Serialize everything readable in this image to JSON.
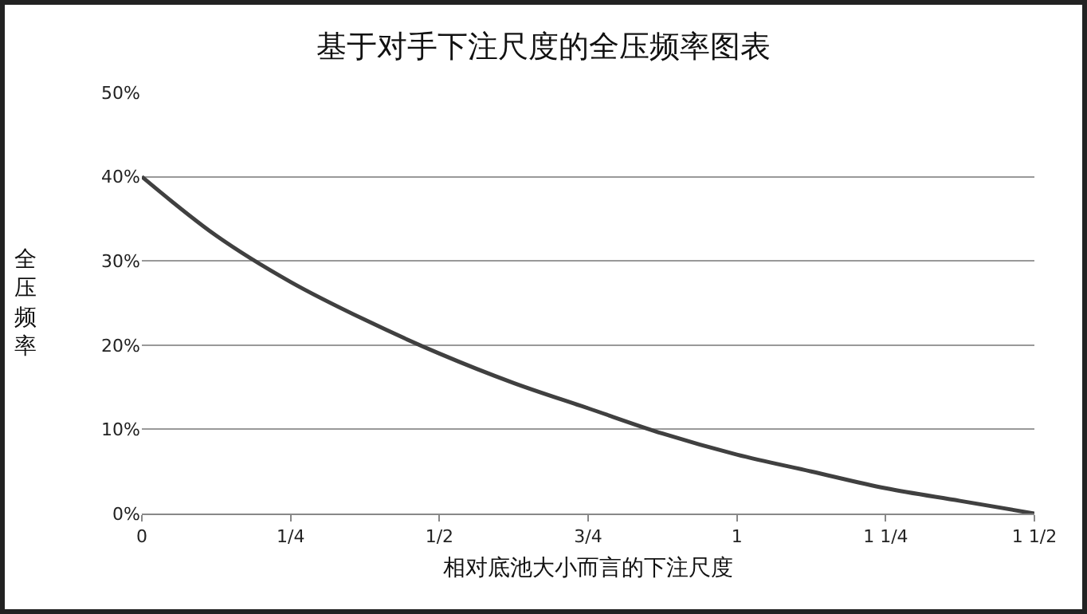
{
  "chart_data": {
    "type": "line",
    "title": "基于对手下注尺度的全压频率图表",
    "xlabel": "相对底池大小而言的下注尺度",
    "ylabel": "全压频率",
    "x": [
      0,
      0.125,
      0.25,
      0.375,
      0.5,
      0.625,
      0.75,
      0.875,
      1,
      1.125,
      1.25,
      1.375,
      1.5
    ],
    "series": [
      {
        "color": "#404040",
        "values": [
          40,
          33,
          27.5,
          23,
          19,
          15.5,
          12.5,
          9.5,
          7,
          5,
          3,
          1.5,
          0
        ]
      }
    ],
    "xlim": [
      0,
      1.5
    ],
    "xticks": [
      {
        "value": 0,
        "label": "0"
      },
      {
        "value": 0.25,
        "label": "1/4"
      },
      {
        "value": 0.5,
        "label": "1/2"
      },
      {
        "value": 0.75,
        "label": "3/4"
      },
      {
        "value": 1,
        "label": "1"
      },
      {
        "value": 1.25,
        "label": "1 1/4"
      },
      {
        "value": 1.5,
        "label": "1 1/2"
      }
    ],
    "ylim": [
      0,
      50
    ],
    "yticks": [
      {
        "value": 0,
        "label": "0%"
      },
      {
        "value": 10,
        "label": "10%"
      },
      {
        "value": 20,
        "label": "20%"
      },
      {
        "value": 30,
        "label": "30%"
      },
      {
        "value": 40,
        "label": "40%"
      },
      {
        "value": 50,
        "label": "50%"
      }
    ],
    "grid": "y",
    "marker": "none",
    "line_style": "solid"
  }
}
